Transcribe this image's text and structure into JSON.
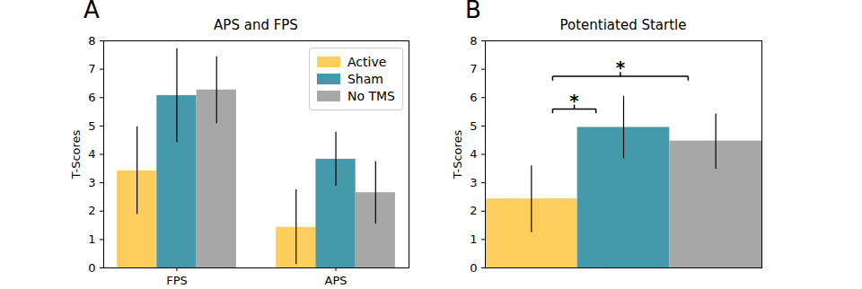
{
  "chart_data": [
    {
      "type": "bar",
      "panel_label": "A",
      "title": "APS and FPS",
      "categories": [
        "FPS",
        "APS"
      ],
      "series": [
        {
          "name": "Active",
          "color": "#fdcd5e",
          "values": [
            3.42,
            1.43
          ],
          "error_low": [
            1.88,
            0.12
          ],
          "error_high": [
            4.97,
            2.75
          ]
        },
        {
          "name": "Sham",
          "color": "#4499ab",
          "values": [
            6.07,
            3.83
          ],
          "error_low": [
            4.42,
            2.88
          ],
          "error_high": [
            7.72,
            4.78
          ]
        },
        {
          "name": "No TMS",
          "color": "#a7a7a7",
          "values": [
            6.27,
            2.65
          ],
          "error_low": [
            5.08,
            1.55
          ],
          "error_high": [
            7.43,
            3.75
          ]
        }
      ],
      "ylabel": "T-Scores",
      "ylim": [
        0,
        8
      ],
      "yticks": [
        0,
        1,
        2,
        3,
        4,
        5,
        6,
        7,
        8
      ],
      "legend": "upper right"
    },
    {
      "type": "bar",
      "panel_label": "B",
      "title": "Potentiated Startle",
      "categories": [
        null,
        null,
        null
      ],
      "values": [
        2.43,
        4.95,
        4.47
      ],
      "colors": [
        "#fdcd5e",
        "#4499ab",
        "#a7a7a7"
      ],
      "error_low": [
        1.25,
        3.85,
        3.48
      ],
      "error_high": [
        3.6,
        6.05,
        5.42
      ],
      "ylabel": "T-Scores",
      "ylim": [
        0,
        8
      ],
      "yticks": [
        0,
        1,
        2,
        3,
        4,
        5,
        6,
        7,
        8
      ],
      "tick_labels": "y",
      "annotations": [
        {
          "text": "*",
          "between": [
            0,
            1
          ],
          "y": 5.6
        },
        {
          "text": "*",
          "between": [
            0,
            2
          ],
          "y": 6.75
        }
      ]
    }
  ]
}
